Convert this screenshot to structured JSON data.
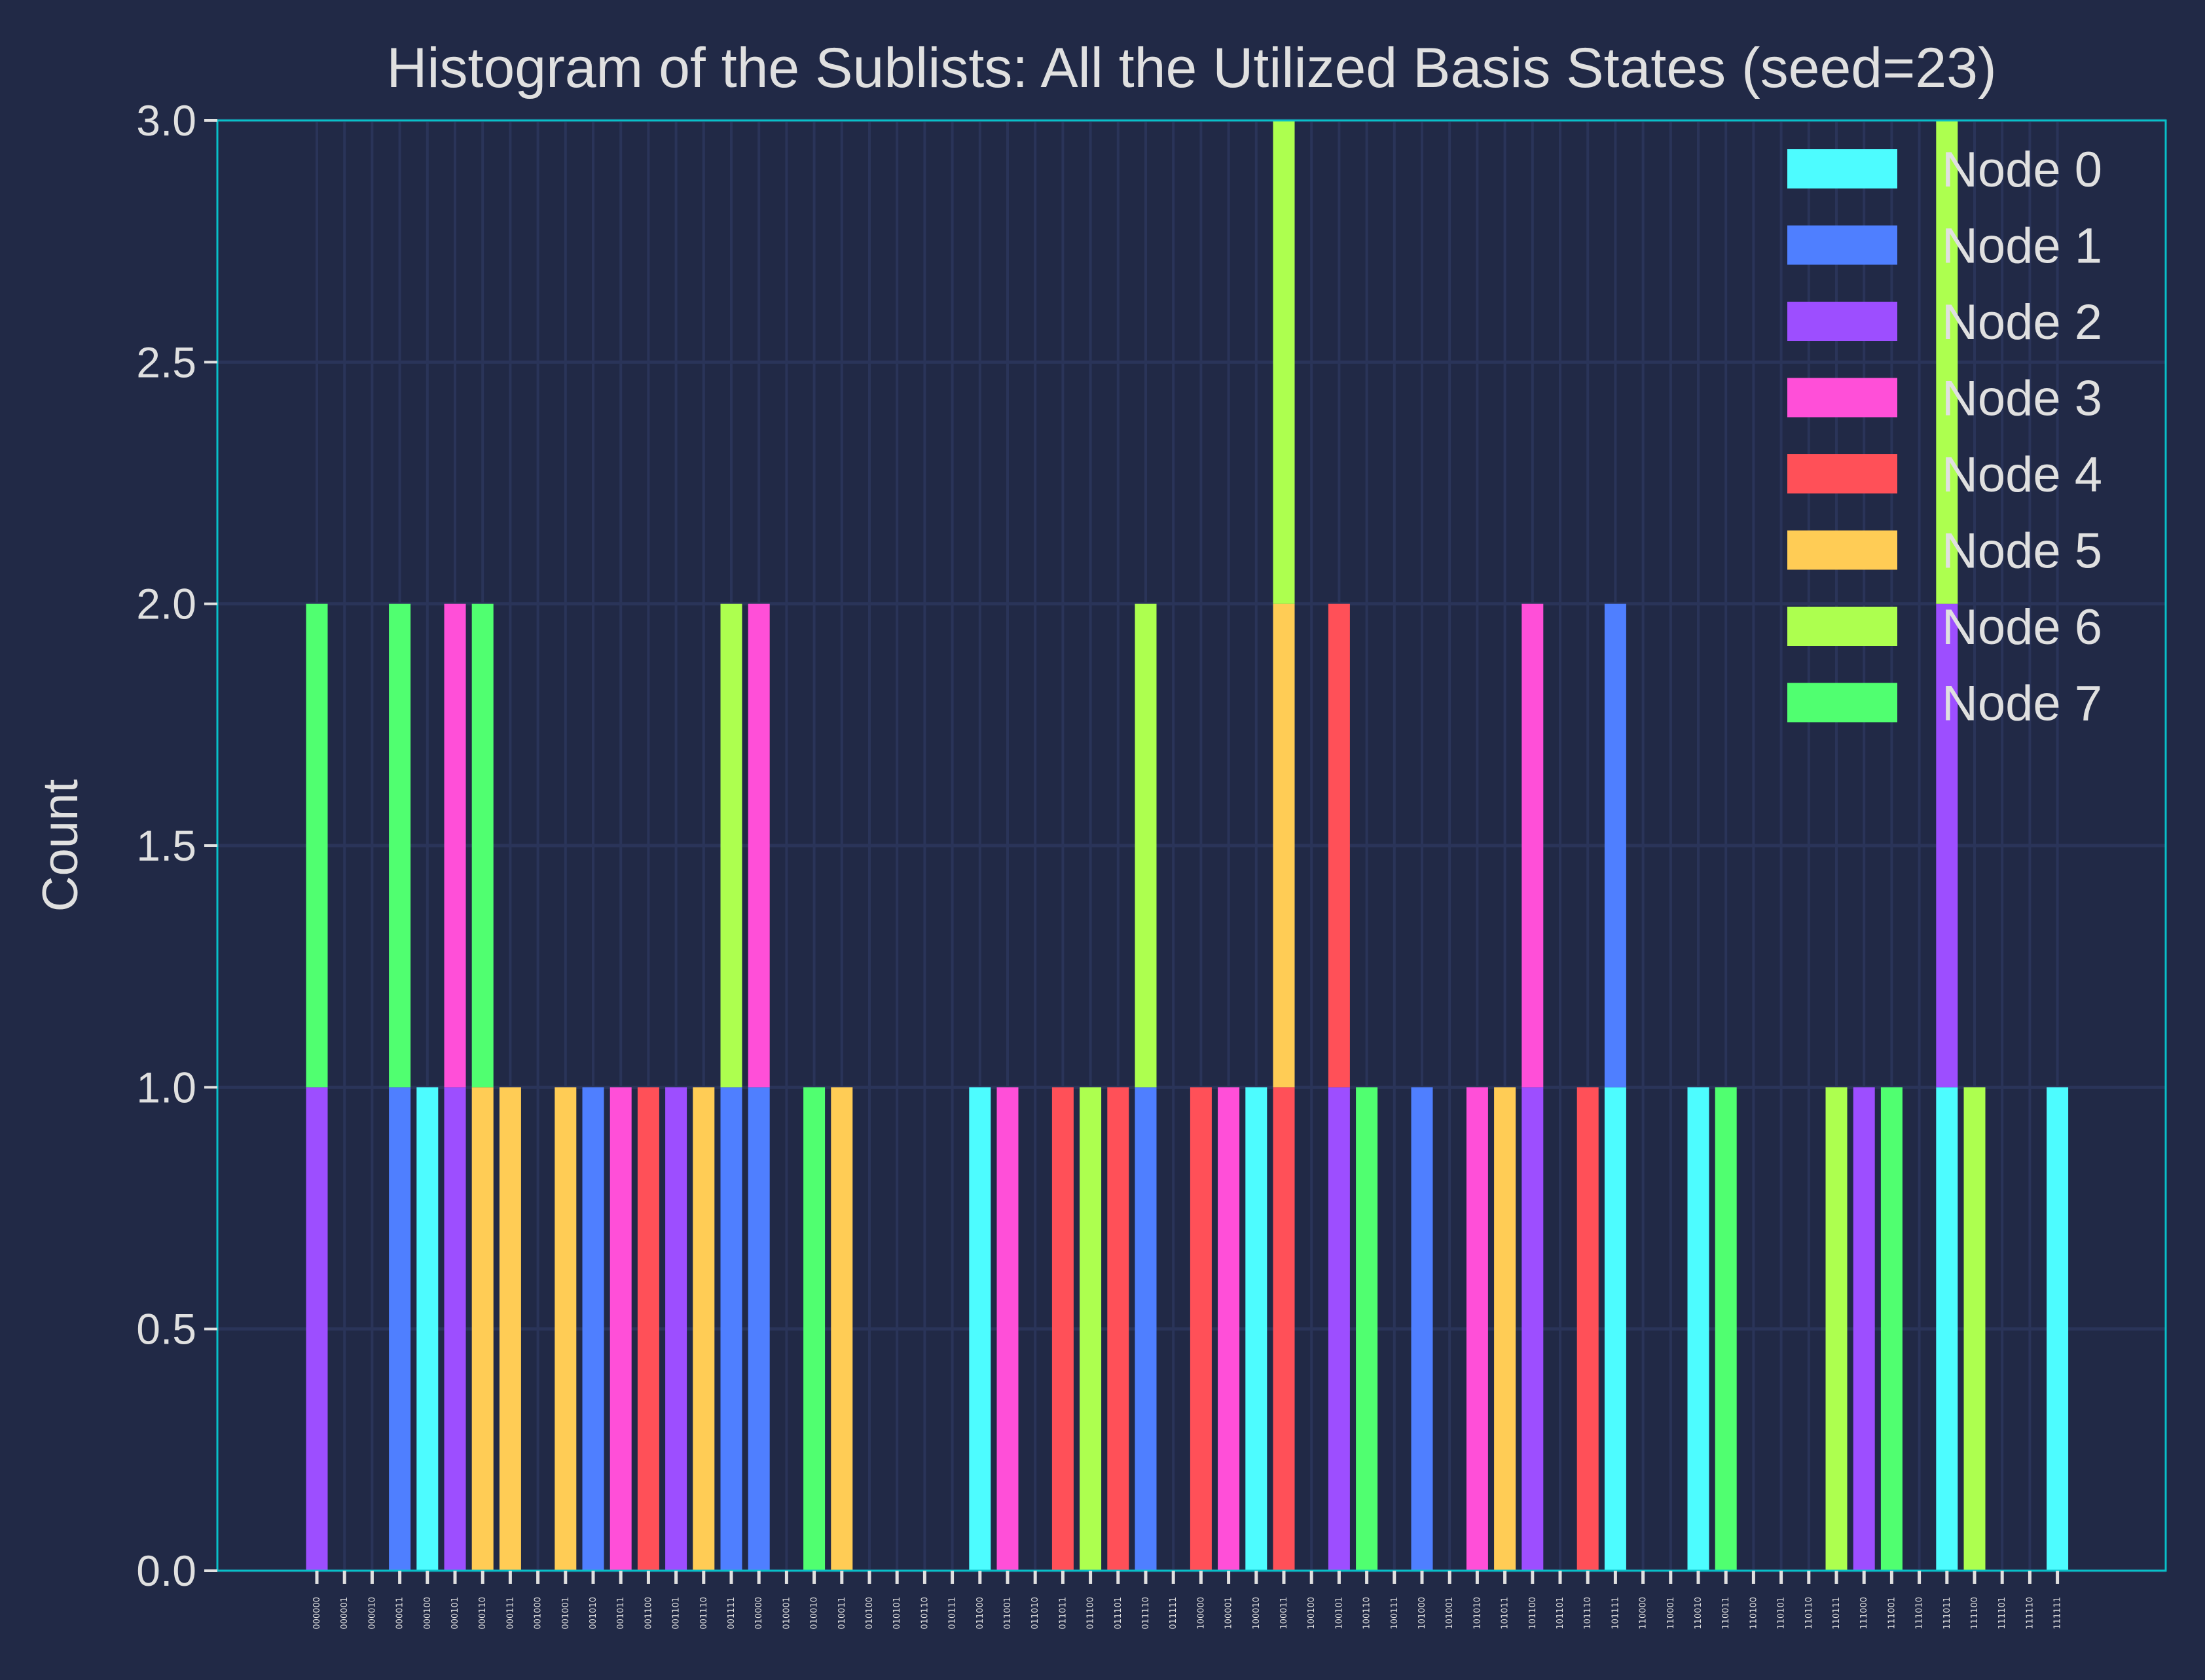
{
  "chart_data": {
    "type": "bar",
    "stacked": true,
    "title": "Histogram of the Sublists: All the Utilized Basis States (seed=23)",
    "xlabel": "",
    "ylabel": "Count",
    "ylim": [
      0,
      3
    ],
    "yticks": [
      "0.0",
      "0.5",
      "1.0",
      "1.5",
      "2.0",
      "2.5",
      "3.0"
    ],
    "grid": true,
    "legend_position": "top-right",
    "categories": [
      "000000",
      "000001",
      "000010",
      "000011",
      "000100",
      "000101",
      "000110",
      "000111",
      "001000",
      "001001",
      "001010",
      "001011",
      "001100",
      "001101",
      "001110",
      "001111",
      "010000",
      "010001",
      "010010",
      "010011",
      "010100",
      "010101",
      "010110",
      "010111",
      "011000",
      "011001",
      "011010",
      "011011",
      "011100",
      "011101",
      "011110",
      "011111",
      "100000",
      "100001",
      "100010",
      "100011",
      "100100",
      "100101",
      "100110",
      "100111",
      "101000",
      "101001",
      "101010",
      "101011",
      "101100",
      "101101",
      "101110",
      "101111",
      "110000",
      "110001",
      "110010",
      "110011",
      "110100",
      "110101",
      "110110",
      "110111",
      "111000",
      "111001",
      "111010",
      "111011",
      "111100",
      "111101",
      "111110",
      "111111"
    ],
    "series": [
      {
        "name": "Node 0",
        "color": "#4dfcff",
        "values": [
          0,
          0,
          0,
          0,
          1,
          0,
          0,
          0,
          0,
          0,
          0,
          0,
          0,
          0,
          0,
          0,
          0,
          0,
          0,
          0,
          0,
          0,
          0,
          0,
          1,
          0,
          0,
          0,
          0,
          0,
          0,
          0,
          0,
          0,
          1,
          0,
          0,
          0,
          0,
          0,
          0,
          0,
          0,
          0,
          0,
          0,
          0,
          1,
          0,
          0,
          1,
          0,
          0,
          0,
          0,
          0,
          0,
          0,
          0,
          1,
          0,
          0,
          0,
          1
        ]
      },
      {
        "name": "Node 1",
        "color": "#4f7fff",
        "values": [
          0,
          0,
          0,
          1,
          0,
          0,
          0,
          0,
          0,
          0,
          1,
          0,
          0,
          0,
          0,
          1,
          1,
          0,
          0,
          0,
          0,
          0,
          0,
          0,
          0,
          0,
          0,
          0,
          0,
          0,
          1,
          0,
          0,
          0,
          0,
          0,
          0,
          0,
          0,
          0,
          1,
          0,
          0,
          0,
          0,
          0,
          0,
          1,
          0,
          0,
          0,
          0,
          0,
          0,
          0,
          0,
          0,
          0,
          0,
          0,
          0,
          0,
          0,
          0
        ]
      },
      {
        "name": "Node 2",
        "color": "#9d4eff",
        "values": [
          1,
          0,
          0,
          0,
          0,
          1,
          0,
          0,
          0,
          0,
          0,
          0,
          0,
          1,
          0,
          0,
          0,
          0,
          0,
          0,
          0,
          0,
          0,
          0,
          0,
          0,
          0,
          0,
          0,
          0,
          0,
          0,
          0,
          0,
          0,
          0,
          0,
          1,
          0,
          0,
          0,
          0,
          0,
          0,
          1,
          0,
          0,
          0,
          0,
          0,
          0,
          0,
          0,
          0,
          0,
          0,
          1,
          0,
          0,
          1,
          0,
          0,
          0,
          0
        ]
      },
      {
        "name": "Node 3",
        "color": "#ff4fd8",
        "values": [
          0,
          0,
          0,
          0,
          0,
          1,
          0,
          0,
          0,
          0,
          0,
          1,
          0,
          0,
          0,
          0,
          1,
          0,
          0,
          0,
          0,
          0,
          0,
          0,
          0,
          1,
          0,
          0,
          0,
          0,
          0,
          0,
          0,
          1,
          0,
          0,
          0,
          0,
          0,
          0,
          0,
          0,
          1,
          0,
          1,
          0,
          0,
          0,
          0,
          0,
          0,
          0,
          0,
          0,
          0,
          0,
          0,
          0,
          0,
          0,
          0,
          0,
          0,
          0
        ]
      },
      {
        "name": "Node 4",
        "color": "#ff5058",
        "values": [
          0,
          0,
          0,
          0,
          0,
          0,
          0,
          0,
          0,
          0,
          0,
          0,
          1,
          0,
          0,
          0,
          0,
          0,
          0,
          0,
          0,
          0,
          0,
          0,
          0,
          0,
          0,
          1,
          0,
          1,
          0,
          0,
          1,
          0,
          0,
          1,
          0,
          1,
          0,
          0,
          0,
          0,
          0,
          0,
          0,
          0,
          1,
          0,
          0,
          0,
          0,
          0,
          0,
          0,
          0,
          0,
          0,
          0,
          0,
          0,
          0,
          0,
          0,
          0
        ]
      },
      {
        "name": "Node 5",
        "color": "#ffcc55",
        "values": [
          0,
          0,
          0,
          0,
          0,
          0,
          1,
          1,
          0,
          1,
          0,
          0,
          0,
          0,
          1,
          0,
          0,
          0,
          0,
          1,
          0,
          0,
          0,
          0,
          0,
          0,
          0,
          0,
          0,
          0,
          0,
          0,
          0,
          0,
          0,
          1,
          0,
          0,
          0,
          0,
          0,
          0,
          0,
          1,
          0,
          0,
          0,
          0,
          0,
          0,
          0,
          0,
          0,
          0,
          0,
          0,
          0,
          0,
          0,
          0,
          0,
          0,
          0,
          0
        ]
      },
      {
        "name": "Node 6",
        "color": "#adff4f",
        "values": [
          0,
          0,
          0,
          0,
          0,
          0,
          0,
          0,
          0,
          0,
          0,
          0,
          0,
          0,
          0,
          1,
          0,
          0,
          0,
          0,
          0,
          0,
          0,
          0,
          0,
          0,
          0,
          0,
          1,
          0,
          1,
          0,
          0,
          0,
          0,
          1,
          0,
          0,
          0,
          0,
          0,
          0,
          0,
          0,
          0,
          0,
          0,
          0,
          0,
          0,
          0,
          0,
          0,
          0,
          0,
          1,
          0,
          0,
          0,
          1,
          1,
          0,
          0,
          0
        ]
      },
      {
        "name": "Node 7",
        "color": "#50ff70",
        "values": [
          1,
          0,
          0,
          1,
          0,
          0,
          1,
          0,
          0,
          0,
          0,
          0,
          0,
          0,
          0,
          0,
          0,
          0,
          1,
          0,
          0,
          0,
          0,
          0,
          0,
          0,
          0,
          0,
          0,
          0,
          0,
          0,
          0,
          0,
          0,
          0,
          0,
          0,
          1,
          0,
          0,
          0,
          0,
          0,
          0,
          0,
          0,
          0,
          0,
          0,
          0,
          1,
          0,
          0,
          0,
          0,
          0,
          1,
          0,
          0,
          0,
          0,
          0,
          0
        ]
      }
    ]
  },
  "colors": {
    "background": "#212946",
    "grid": "#2a3459",
    "axis": "#08c0c8",
    "text": "#e0e0e0"
  }
}
